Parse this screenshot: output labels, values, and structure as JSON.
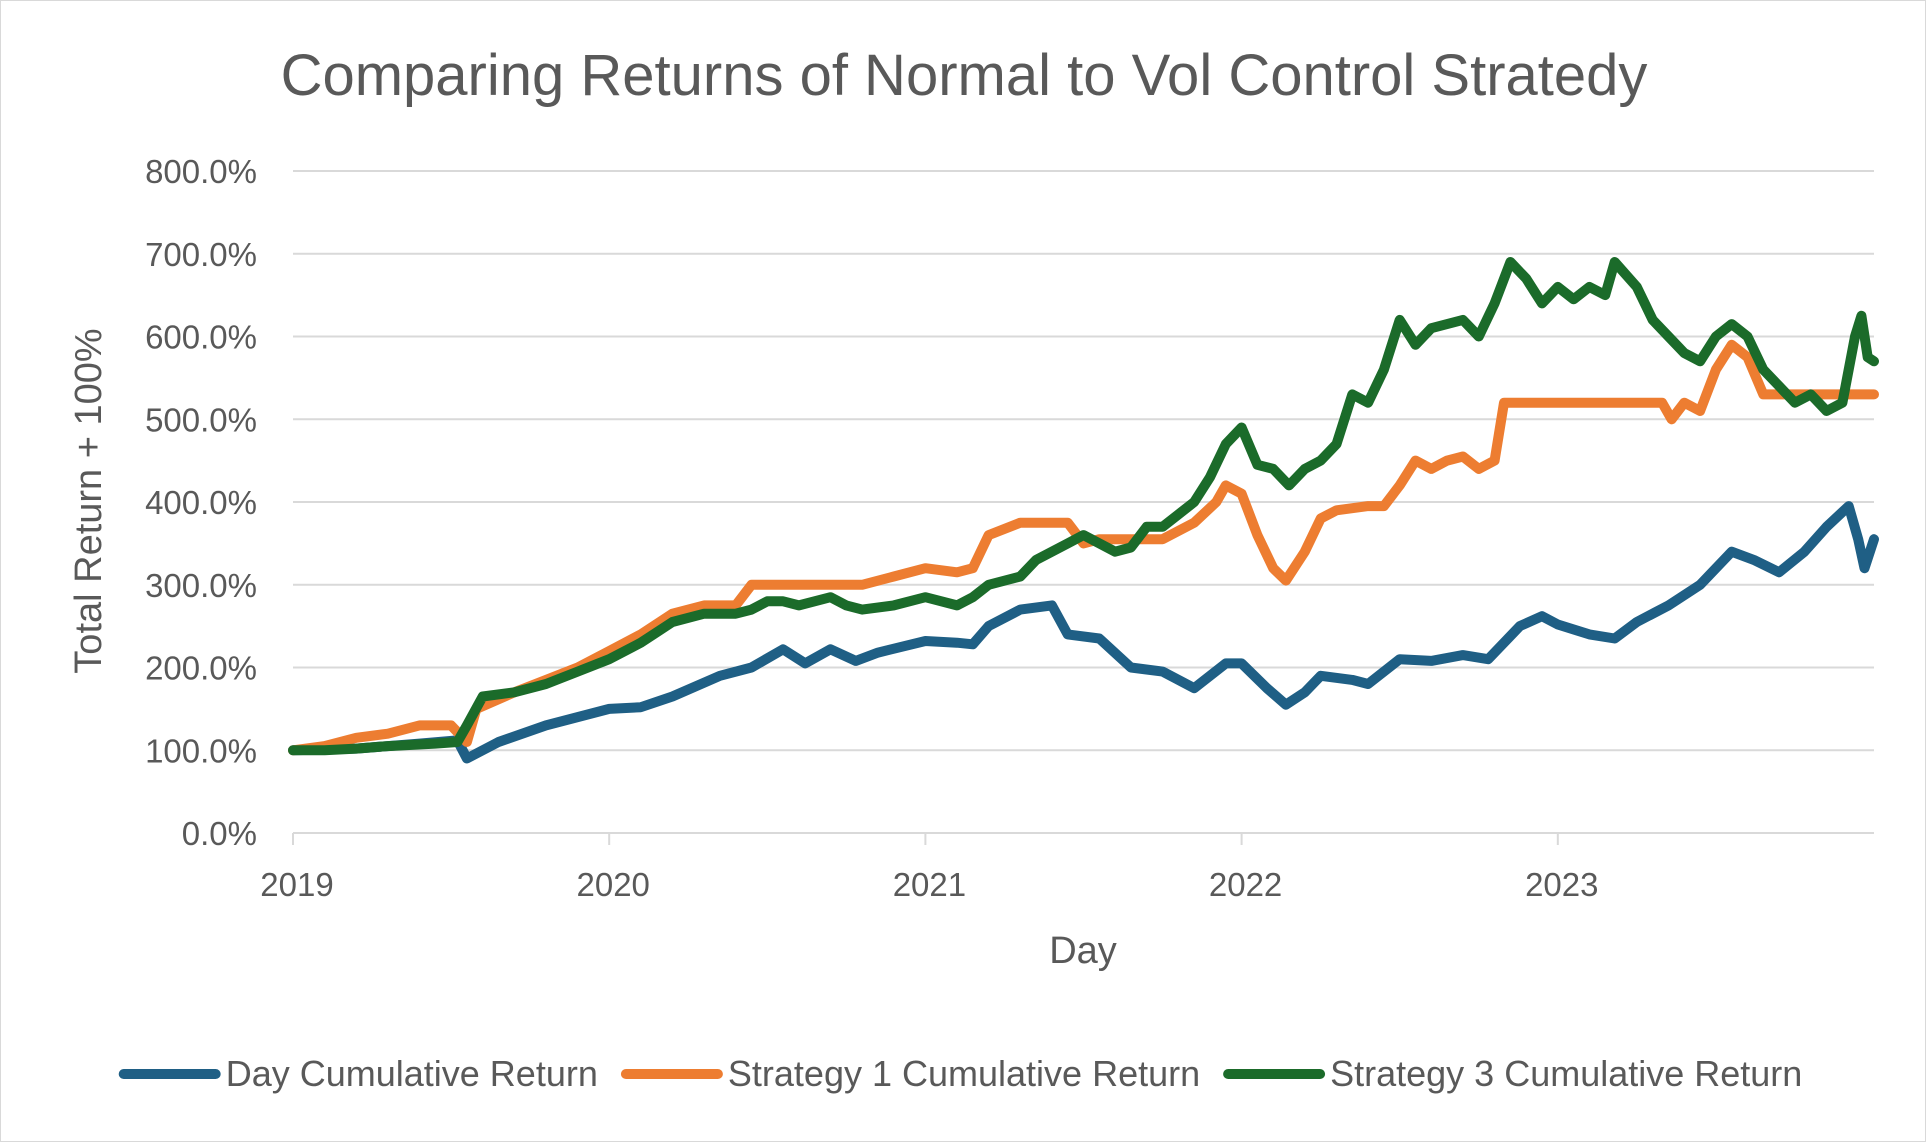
{
  "chart_data": {
    "type": "line",
    "title": "Comparing Returns of Normal to Vol Control Stratedy",
    "xlabel": "Day",
    "ylabel": "Total Return + 100%",
    "xlim": [
      2019.0,
      2024.0
    ],
    "ylim": [
      0,
      800
    ],
    "x_ticks": [
      2019,
      2020,
      2021,
      2022,
      2023
    ],
    "x_tick_labels": [
      "2019",
      "2020",
      "2021",
      "2022",
      "2023"
    ],
    "y_ticks": [
      0,
      100,
      200,
      300,
      400,
      500,
      600,
      700,
      800
    ],
    "y_tick_labels": [
      "0.0%",
      "100.0%",
      "200.0%",
      "300.0%",
      "400.0%",
      "500.0%",
      "600.0%",
      "700.0%",
      "800.0%"
    ],
    "grid": true,
    "legend_position": "bottom",
    "series": [
      {
        "name": "Day Cumulative Return",
        "color": "#1f5f85",
        "points": [
          [
            2019.0,
            100
          ],
          [
            2019.2,
            102
          ],
          [
            2019.4,
            108
          ],
          [
            2019.52,
            112
          ],
          [
            2019.55,
            90
          ],
          [
            2019.65,
            110
          ],
          [
            2019.8,
            130
          ],
          [
            2020.0,
            150
          ],
          [
            2020.1,
            152
          ],
          [
            2020.2,
            165
          ],
          [
            2020.35,
            190
          ],
          [
            2020.45,
            200
          ],
          [
            2020.55,
            222
          ],
          [
            2020.62,
            205
          ],
          [
            2020.7,
            222
          ],
          [
            2020.78,
            208
          ],
          [
            2020.85,
            218
          ],
          [
            2021.0,
            232
          ],
          [
            2021.1,
            230
          ],
          [
            2021.15,
            228
          ],
          [
            2021.2,
            250
          ],
          [
            2021.3,
            270
          ],
          [
            2021.4,
            275
          ],
          [
            2021.45,
            240
          ],
          [
            2021.55,
            235
          ],
          [
            2021.65,
            200
          ],
          [
            2021.75,
            195
          ],
          [
            2021.85,
            175
          ],
          [
            2021.95,
            205
          ],
          [
            2022.0,
            205
          ],
          [
            2022.08,
            175
          ],
          [
            2022.14,
            155
          ],
          [
            2022.2,
            170
          ],
          [
            2022.25,
            190
          ],
          [
            2022.35,
            185
          ],
          [
            2022.4,
            180
          ],
          [
            2022.5,
            210
          ],
          [
            2022.6,
            208
          ],
          [
            2022.7,
            215
          ],
          [
            2022.78,
            210
          ],
          [
            2022.88,
            250
          ],
          [
            2022.95,
            262
          ],
          [
            2023.0,
            252
          ],
          [
            2023.1,
            240
          ],
          [
            2023.18,
            235
          ],
          [
            2023.25,
            255
          ],
          [
            2023.35,
            275
          ],
          [
            2023.45,
            300
          ],
          [
            2023.55,
            340
          ],
          [
            2023.62,
            330
          ],
          [
            2023.7,
            315
          ],
          [
            2023.78,
            340
          ],
          [
            2023.85,
            370
          ],
          [
            2023.92,
            395
          ],
          [
            2023.95,
            355
          ],
          [
            2023.97,
            320
          ],
          [
            2024.0,
            355
          ]
        ]
      },
      {
        "name": "Strategy 1 Cumulative Return",
        "color": "#ed7d31",
        "points": [
          [
            2019.0,
            100
          ],
          [
            2019.1,
            105
          ],
          [
            2019.2,
            115
          ],
          [
            2019.3,
            120
          ],
          [
            2019.4,
            130
          ],
          [
            2019.5,
            130
          ],
          [
            2019.55,
            110
          ],
          [
            2019.58,
            150
          ],
          [
            2019.7,
            170
          ],
          [
            2019.8,
            185
          ],
          [
            2019.9,
            200
          ],
          [
            2020.0,
            220
          ],
          [
            2020.1,
            240
          ],
          [
            2020.2,
            265
          ],
          [
            2020.3,
            275
          ],
          [
            2020.4,
            275
          ],
          [
            2020.45,
            300
          ],
          [
            2020.6,
            300
          ],
          [
            2020.8,
            300
          ],
          [
            2020.9,
            310
          ],
          [
            2021.0,
            320
          ],
          [
            2021.1,
            315
          ],
          [
            2021.15,
            320
          ],
          [
            2021.2,
            360
          ],
          [
            2021.3,
            375
          ],
          [
            2021.45,
            375
          ],
          [
            2021.5,
            350
          ],
          [
            2021.55,
            355
          ],
          [
            2021.6,
            355
          ],
          [
            2021.75,
            355
          ],
          [
            2021.85,
            375
          ],
          [
            2021.92,
            400
          ],
          [
            2021.95,
            420
          ],
          [
            2022.0,
            410
          ],
          [
            2022.05,
            360
          ],
          [
            2022.1,
            320
          ],
          [
            2022.14,
            305
          ],
          [
            2022.2,
            340
          ],
          [
            2022.25,
            380
          ],
          [
            2022.3,
            390
          ],
          [
            2022.4,
            395
          ],
          [
            2022.45,
            395
          ],
          [
            2022.5,
            420
          ],
          [
            2022.55,
            450
          ],
          [
            2022.6,
            440
          ],
          [
            2022.65,
            450
          ],
          [
            2022.7,
            455
          ],
          [
            2022.75,
            440
          ],
          [
            2022.8,
            450
          ],
          [
            2022.83,
            520
          ],
          [
            2023.0,
            520
          ],
          [
            2023.2,
            520
          ],
          [
            2023.33,
            520
          ],
          [
            2023.36,
            500
          ],
          [
            2023.4,
            520
          ],
          [
            2023.45,
            510
          ],
          [
            2023.5,
            560
          ],
          [
            2023.55,
            590
          ],
          [
            2023.6,
            575
          ],
          [
            2023.65,
            530
          ],
          [
            2023.8,
            530
          ],
          [
            2024.0,
            530
          ]
        ]
      },
      {
        "name": "Strategy 3 Cumulative Return",
        "color": "#1b6b2a",
        "points": [
          [
            2019.0,
            100
          ],
          [
            2019.1,
            100
          ],
          [
            2019.2,
            102
          ],
          [
            2019.3,
            105
          ],
          [
            2019.45,
            108
          ],
          [
            2019.52,
            110
          ],
          [
            2019.55,
            130
          ],
          [
            2019.6,
            165
          ],
          [
            2019.7,
            170
          ],
          [
            2019.8,
            180
          ],
          [
            2019.9,
            195
          ],
          [
            2020.0,
            210
          ],
          [
            2020.1,
            230
          ],
          [
            2020.2,
            255
          ],
          [
            2020.3,
            265
          ],
          [
            2020.4,
            265
          ],
          [
            2020.45,
            270
          ],
          [
            2020.5,
            280
          ],
          [
            2020.55,
            280
          ],
          [
            2020.6,
            275
          ],
          [
            2020.7,
            285
          ],
          [
            2020.75,
            275
          ],
          [
            2020.8,
            270
          ],
          [
            2020.9,
            275
          ],
          [
            2021.0,
            285
          ],
          [
            2021.1,
            275
          ],
          [
            2021.15,
            285
          ],
          [
            2021.2,
            300
          ],
          [
            2021.3,
            310
          ],
          [
            2021.35,
            330
          ],
          [
            2021.45,
            350
          ],
          [
            2021.5,
            360
          ],
          [
            2021.6,
            340
          ],
          [
            2021.65,
            345
          ],
          [
            2021.7,
            370
          ],
          [
            2021.75,
            370
          ],
          [
            2021.8,
            385
          ],
          [
            2021.85,
            400
          ],
          [
            2021.9,
            430
          ],
          [
            2021.95,
            470
          ],
          [
            2022.0,
            490
          ],
          [
            2022.05,
            445
          ],
          [
            2022.1,
            440
          ],
          [
            2022.15,
            420
          ],
          [
            2022.2,
            440
          ],
          [
            2022.25,
            450
          ],
          [
            2022.3,
            470
          ],
          [
            2022.35,
            530
          ],
          [
            2022.4,
            520
          ],
          [
            2022.45,
            560
          ],
          [
            2022.5,
            620
          ],
          [
            2022.55,
            590
          ],
          [
            2022.6,
            610
          ],
          [
            2022.7,
            620
          ],
          [
            2022.75,
            600
          ],
          [
            2022.8,
            640
          ],
          [
            2022.85,
            690
          ],
          [
            2022.9,
            670
          ],
          [
            2022.95,
            640
          ],
          [
            2023.0,
            660
          ],
          [
            2023.05,
            645
          ],
          [
            2023.1,
            660
          ],
          [
            2023.15,
            650
          ],
          [
            2023.18,
            690
          ],
          [
            2023.25,
            660
          ],
          [
            2023.3,
            620
          ],
          [
            2023.35,
            600
          ],
          [
            2023.4,
            580
          ],
          [
            2023.45,
            570
          ],
          [
            2023.5,
            600
          ],
          [
            2023.55,
            615
          ],
          [
            2023.6,
            600
          ],
          [
            2023.65,
            560
          ],
          [
            2023.7,
            540
          ],
          [
            2023.75,
            520
          ],
          [
            2023.8,
            530
          ],
          [
            2023.85,
            510
          ],
          [
            2023.9,
            520
          ],
          [
            2023.94,
            600
          ],
          [
            2023.96,
            625
          ],
          [
            2023.98,
            575
          ],
          [
            2024.0,
            570
          ]
        ]
      }
    ]
  }
}
